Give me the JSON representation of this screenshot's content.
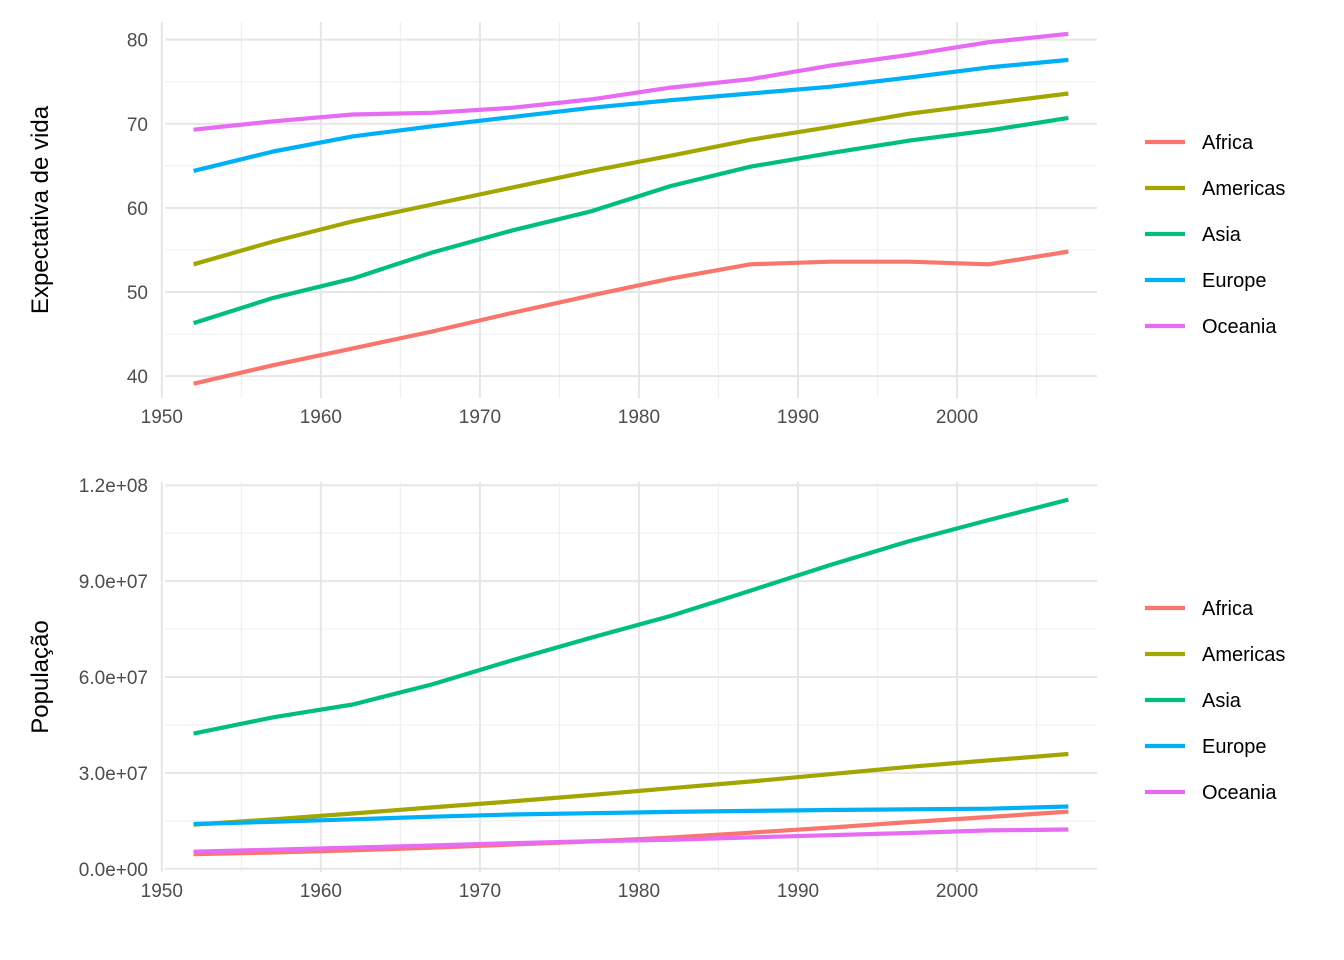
{
  "chart_data": [
    {
      "type": "line",
      "title": "",
      "xlabel": "",
      "ylabel": "Expectativa de vida",
      "xlim": [
        1950.2,
        2008.8
      ],
      "ylim": [
        37.4,
        82.1
      ],
      "x_ticks": [
        1950,
        1960,
        1970,
        1980,
        1990,
        2000
      ],
      "x_tick_labels": [
        "1950",
        "1960",
        "1970",
        "1980",
        "1990",
        "2000"
      ],
      "y_ticks": [
        40,
        50,
        60,
        70,
        80
      ],
      "y_tick_labels": [
        "40",
        "50",
        "60",
        "70",
        "80"
      ],
      "x": [
        1952,
        1957,
        1962,
        1967,
        1972,
        1977,
        1982,
        1987,
        1992,
        1997,
        2002,
        2007
      ],
      "series": [
        {
          "name": "Africa",
          "color": "#F8766D",
          "values": [
            39.1,
            41.3,
            43.3,
            45.3,
            47.5,
            49.6,
            51.6,
            53.3,
            53.6,
            53.6,
            53.3,
            54.8
          ]
        },
        {
          "name": "Americas",
          "color": "#A3A500",
          "values": [
            53.3,
            56.0,
            58.4,
            60.4,
            62.4,
            64.4,
            66.2,
            68.1,
            69.6,
            71.2,
            72.4,
            73.6
          ]
        },
        {
          "name": "Asia",
          "color": "#00BF7D",
          "values": [
            46.3,
            49.3,
            51.6,
            54.7,
            57.3,
            59.6,
            62.6,
            64.9,
            66.5,
            68.0,
            69.2,
            70.7
          ]
        },
        {
          "name": "Europe",
          "color": "#00B0F6",
          "values": [
            64.4,
            66.7,
            68.5,
            69.7,
            70.8,
            71.9,
            72.8,
            73.6,
            74.4,
            75.5,
            76.7,
            77.6
          ]
        },
        {
          "name": "Oceania",
          "color": "#E76BF3",
          "values": [
            69.3,
            70.3,
            71.1,
            71.3,
            71.9,
            72.9,
            74.3,
            75.3,
            76.9,
            78.2,
            79.7,
            80.7
          ]
        }
      ],
      "legend": {
        "position": "right",
        "entries": [
          "Africa",
          "Americas",
          "Asia",
          "Europe",
          "Oceania"
        ]
      },
      "grid": true
    },
    {
      "type": "line",
      "title": "",
      "xlabel": "",
      "ylabel": "População",
      "xlim": [
        1950.2,
        2008.8
      ],
      "ylim": [
        -1000000,
        121000000
      ],
      "x_ticks": [
        1950,
        1960,
        1970,
        1980,
        1990,
        2000
      ],
      "x_tick_labels": [
        "1950",
        "1960",
        "1970",
        "1980",
        "1990",
        "2000"
      ],
      "y_ticks": [
        0,
        30000000,
        60000000,
        90000000,
        120000000
      ],
      "y_tick_labels": [
        "0.0e+00",
        "3.0e+07",
        "6.0e+07",
        "9.0e+07",
        "1.2e+08"
      ],
      "x": [
        1952,
        1957,
        1962,
        1967,
        1972,
        1977,
        1982,
        1987,
        1992,
        1997,
        2002,
        2007
      ],
      "series": [
        {
          "name": "Africa",
          "color": "#F8766D",
          "values": [
            4570000,
            5090000,
            5790000,
            6640000,
            7610000,
            8560000,
            9760000,
            11300000,
            12900000,
            14600000,
            16200000,
            17900000
          ]
        },
        {
          "name": "Americas",
          "color": "#A3A500",
          "values": [
            13800000,
            15500000,
            17300000,
            19200000,
            21100000,
            23100000,
            25200000,
            27300000,
            29600000,
            31900000,
            33900000,
            35900000
          ]
        },
        {
          "name": "Asia",
          "color": "#00BF7D",
          "values": [
            42300000,
            47400000,
            51400000,
            57700000,
            65200000,
            72300000,
            79100000,
            87000000,
            95000000,
            102500000,
            109100000,
            115500000
          ]
        },
        {
          "name": "Europe",
          "color": "#00B0F6",
          "values": [
            14000000,
            14700000,
            15500000,
            16300000,
            17000000,
            17400000,
            17800000,
            18100000,
            18400000,
            18600000,
            18800000,
            19500000
          ]
        },
        {
          "name": "Oceania",
          "color": "#E76BF3",
          "values": [
            5340000,
            5970000,
            6640000,
            7300000,
            8010000,
            8620000,
            9080000,
            9810000,
            10500000,
            11200000,
            12000000,
            12300000
          ]
        }
      ],
      "legend": {
        "position": "right",
        "entries": [
          "Africa",
          "Americas",
          "Asia",
          "Europe",
          "Oceania"
        ]
      },
      "grid": true
    }
  ]
}
